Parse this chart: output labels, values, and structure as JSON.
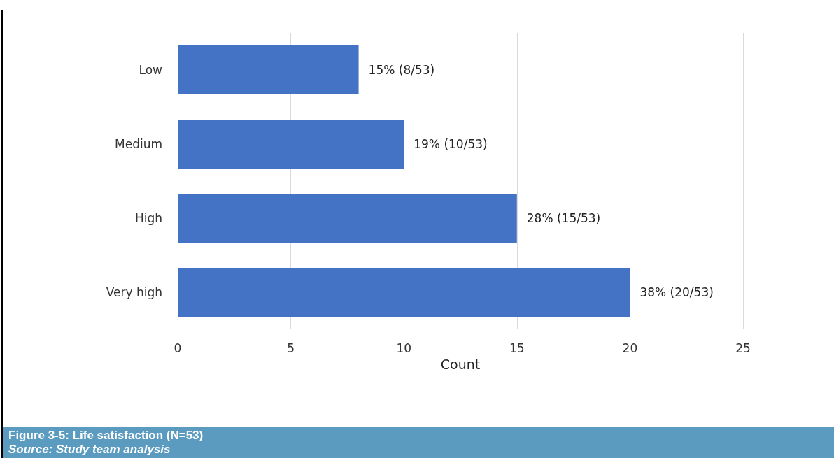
{
  "chart_data": {
    "type": "bar",
    "orientation": "horizontal",
    "title": "Figure 3-5: Life satisfaction (N=53)",
    "annotations": [
      "Source:  Study team analysis"
    ],
    "xlabel": "Count",
    "categories": [
      "Low",
      "Medium",
      "High",
      "Very high"
    ],
    "values": [
      8,
      10,
      15,
      20
    ],
    "color": "#4472c4",
    "value_labels": [
      "15% (8/53)",
      "19% (10/53)",
      "28% (15/53)",
      "38% (20/53)"
    ],
    "xlim": [
      0,
      25
    ],
    "xticks": [
      0,
      5,
      10,
      15,
      20,
      25
    ],
    "grid": "x"
  }
}
